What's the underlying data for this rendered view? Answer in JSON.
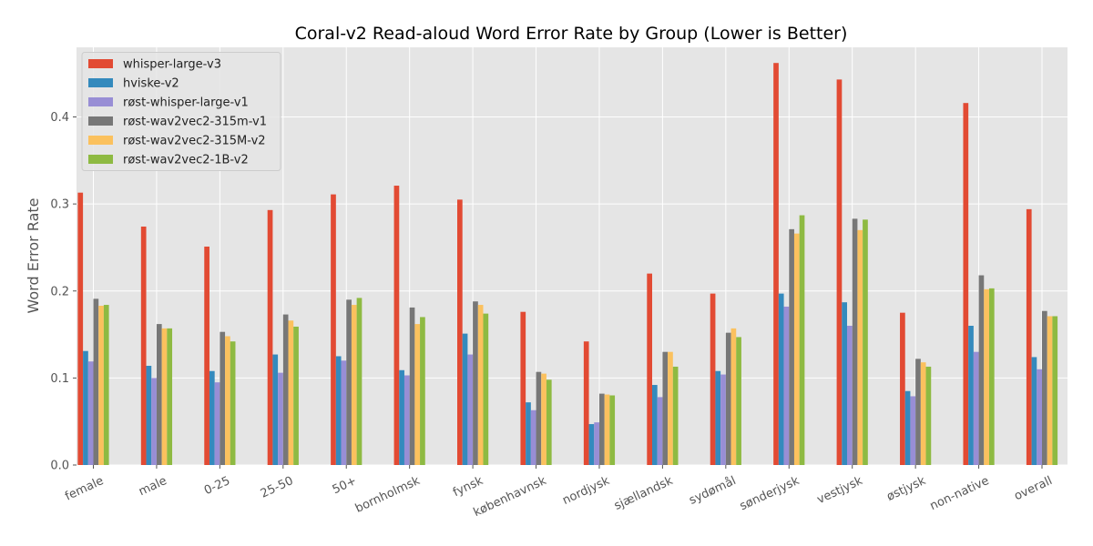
{
  "chart_data": {
    "type": "bar",
    "title": "Coral-v2 Read-aloud Word Error Rate by Group (Lower is Better)",
    "xlabel": "",
    "ylabel": "Word Error Rate",
    "ylim": [
      0,
      0.48
    ],
    "yticks": [
      0.0,
      0.1,
      0.2,
      0.3,
      0.4
    ],
    "ytick_labels": [
      "0.0",
      "0.1",
      "0.2",
      "0.3",
      "0.4"
    ],
    "grid": true,
    "legend_position": "top-left",
    "categories": [
      "female",
      "male",
      "0-25",
      "25-50",
      "50+",
      "bornholmsk",
      "fynsk",
      "københavnsk",
      "nordjysk",
      "sjællandsk",
      "sydømål",
      "sønderjysk",
      "vestjysk",
      "østjysk",
      "non-native",
      "overall"
    ],
    "series": [
      {
        "name": "whisper-large-v3",
        "color": "#E24A33",
        "values": [
          0.313,
          0.274,
          0.251,
          0.293,
          0.311,
          0.321,
          0.305,
          0.176,
          0.142,
          0.22,
          0.197,
          0.462,
          0.443,
          0.175,
          0.416,
          0.294
        ]
      },
      {
        "name": "hviske-v2",
        "color": "#348ABD",
        "values": [
          0.131,
          0.114,
          0.108,
          0.127,
          0.125,
          0.109,
          0.151,
          0.072,
          0.047,
          0.092,
          0.108,
          0.197,
          0.187,
          0.085,
          0.16,
          0.124
        ]
      },
      {
        "name": "røst-whisper-large-v1",
        "color": "#988ED5",
        "values": [
          0.119,
          0.1,
          0.095,
          0.106,
          0.12,
          0.103,
          0.127,
          0.063,
          0.049,
          0.078,
          0.104,
          0.182,
          0.16,
          0.079,
          0.13,
          0.11
        ]
      },
      {
        "name": "røst-wav2vec2-315m-v1",
        "color": "#777777",
        "values": [
          0.191,
          0.162,
          0.153,
          0.173,
          0.19,
          0.181,
          0.188,
          0.107,
          0.082,
          0.13,
          0.152,
          0.271,
          0.283,
          0.122,
          0.218,
          0.177
        ]
      },
      {
        "name": "røst-wav2vec2-315M-v2",
        "color": "#FBC15E",
        "values": [
          0.183,
          0.157,
          0.148,
          0.166,
          0.184,
          0.162,
          0.184,
          0.105,
          0.081,
          0.13,
          0.157,
          0.266,
          0.27,
          0.118,
          0.202,
          0.171
        ]
      },
      {
        "name": "røst-wav2vec2-1B-v2",
        "color": "#8EBA42",
        "values": [
          0.184,
          0.157,
          0.142,
          0.159,
          0.192,
          0.17,
          0.174,
          0.098,
          0.08,
          0.113,
          0.147,
          0.287,
          0.282,
          0.113,
          0.203,
          0.171
        ]
      }
    ]
  }
}
